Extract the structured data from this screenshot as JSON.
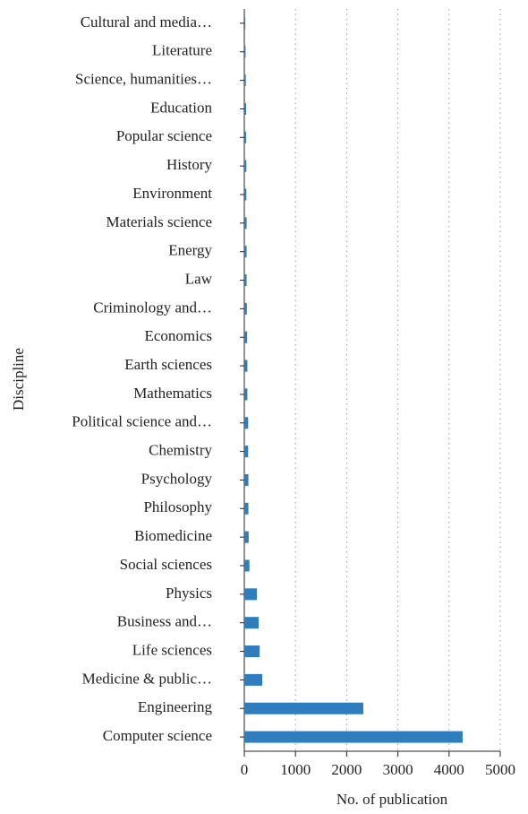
{
  "chart_data": {
    "type": "barh",
    "xlabel": "No. of publication",
    "ylabel": "Discipline",
    "categories": [
      "Cultural and media…",
      "Literature",
      "Science, humanities…",
      "Education",
      "Popular science",
      "History",
      "Environment",
      "Materials science",
      "Energy",
      "Law",
      "Criminology and…",
      "Economics",
      "Earth sciences",
      "Mathematics",
      "Political science and…",
      "Chemistry",
      "Psychology",
      "Philosophy",
      "Biomedicine",
      "Social sciences",
      "Physics",
      "Business and…",
      "Life sciences",
      "Medicine & public…",
      "Engineering",
      "Computer science"
    ],
    "values": [
      20,
      25,
      30,
      35,
      35,
      40,
      40,
      45,
      45,
      45,
      50,
      55,
      60,
      60,
      75,
      75,
      80,
      80,
      85,
      100,
      245,
      280,
      300,
      350,
      2325,
      4265
    ],
    "color": "#2e7ebf",
    "xlim": [
      0,
      5000
    ],
    "xticks": [
      0,
      1000,
      2000,
      3000,
      4000,
      5000
    ],
    "grid": true
  }
}
